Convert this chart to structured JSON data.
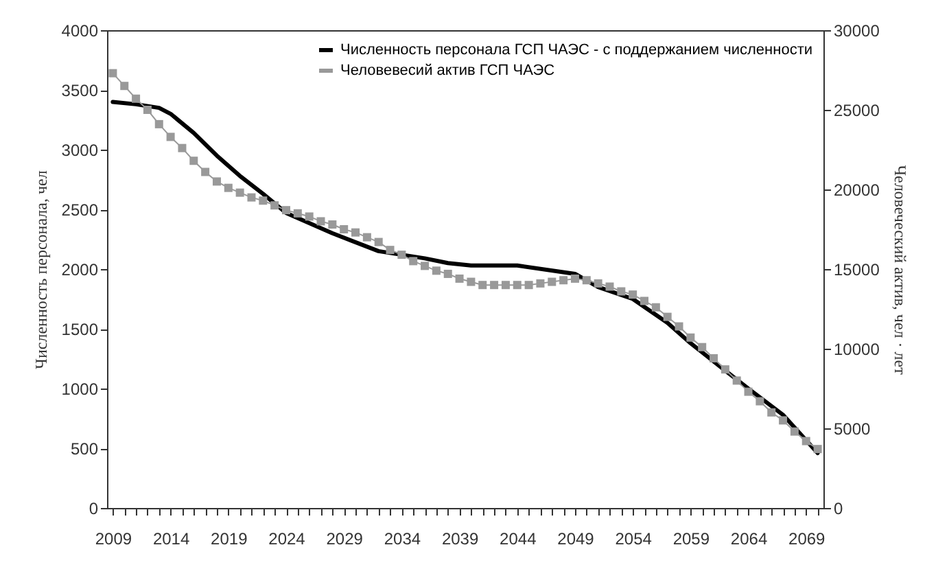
{
  "chart_data": {
    "type": "line",
    "ylabel": "Численность персонала, чел",
    "y2label": "Человеческий актив, чел · лет",
    "xlim": [
      2008.5,
      2070.5
    ],
    "xticks": [
      2009,
      {
        "value": 2010,
        "label": null
      },
      {
        "value": 2011,
        "label": null
      },
      {
        "value": 2012,
        "label": null
      },
      {
        "value": 2013,
        "label": null
      },
      2014,
      {
        "value": 2015,
        "label": null
      },
      {
        "value": 2016,
        "label": null
      },
      {
        "value": 2017,
        "label": null
      },
      {
        "value": 2018,
        "label": null
      },
      2019,
      {
        "value": 2020,
        "label": null
      },
      {
        "value": 2021,
        "label": null
      },
      {
        "value": 2022,
        "label": null
      },
      {
        "value": 2023,
        "label": null
      },
      2024,
      {
        "value": 2025,
        "label": null
      },
      {
        "value": 2026,
        "label": null
      },
      {
        "value": 2027,
        "label": null
      },
      {
        "value": 2028,
        "label": null
      },
      2029,
      {
        "value": 2030,
        "label": null
      },
      {
        "value": 2031,
        "label": null
      },
      {
        "value": 2032,
        "label": null
      },
      {
        "value": 2033,
        "label": null
      },
      2034,
      {
        "value": 2035,
        "label": null
      },
      {
        "value": 2036,
        "label": null
      },
      {
        "value": 2037,
        "label": null
      },
      {
        "value": 2038,
        "label": null
      },
      2039,
      {
        "value": 2040,
        "label": null
      },
      {
        "value": 2041,
        "label": null
      },
      {
        "value": 2042,
        "label": null
      },
      {
        "value": 2043,
        "label": null
      },
      2044,
      {
        "value": 2045,
        "label": null
      },
      {
        "value": 2046,
        "label": null
      },
      {
        "value": 2047,
        "label": null
      },
      {
        "value": 2048,
        "label": null
      },
      2049,
      {
        "value": 2050,
        "label": null
      },
      {
        "value": 2051,
        "label": null
      },
      {
        "value": 2052,
        "label": null
      },
      {
        "value": 2053,
        "label": null
      },
      2054,
      {
        "value": 2055,
        "label": null
      },
      {
        "value": 2056,
        "label": null
      },
      {
        "value": 2057,
        "label": null
      },
      {
        "value": 2058,
        "label": null
      },
      2059,
      {
        "value": 2060,
        "label": null
      },
      {
        "value": 2061,
        "label": null
      },
      {
        "value": 2062,
        "label": null
      },
      {
        "value": 2063,
        "label": null
      },
      2064,
      {
        "value": 2065,
        "label": null
      },
      {
        "value": 2066,
        "label": null
      },
      {
        "value": 2067,
        "label": null
      },
      {
        "value": 2068,
        "label": null
      },
      2069,
      {
        "value": 2070,
        "label": null
      }
    ],
    "ylim": [
      0,
      4000
    ],
    "yticks": [
      0,
      500,
      1000,
      1500,
      2000,
      2500,
      3000,
      3500,
      4000
    ],
    "y2lim": [
      0,
      30000
    ],
    "y2ticks": [
      0,
      5000,
      10000,
      15000,
      20000,
      25000,
      30000
    ],
    "grid": false,
    "legend": "top right",
    "series": [
      {
        "name": "Численность персонала ГСП ЧАЭС - с поддержанием численности",
        "color": "#000000",
        "marker": "none",
        "line_style": "solid",
        "x": [
          2009,
          2011,
          2013,
          2014,
          2016,
          2018,
          2020,
          2022,
          2024,
          2028,
          2032,
          2036,
          2038,
          2040,
          2044,
          2049,
          2051,
          2054,
          2057,
          2059,
          2062,
          2064,
          2067,
          2070
        ],
        "values": [
          3400,
          3380,
          3350,
          3300,
          3140,
          2950,
          2780,
          2630,
          2470,
          2300,
          2150,
          2090,
          2050,
          2030,
          2030,
          1960,
          1850,
          1750,
          1550,
          1380,
          1150,
          1000,
          780,
          460
        ]
      },
      {
        "name": "Человевесий актив ГСП ЧАЭС",
        "color": "#999999",
        "marker": "square",
        "line_style": "solid",
        "axis": "y2",
        "x": [
          2009,
          2010,
          2011,
          2012,
          2013,
          2014,
          2015,
          2016,
          2017,
          2018,
          2019,
          2020,
          2021,
          2022,
          2023,
          2024,
          2025,
          2026,
          2027,
          2028,
          2029,
          2030,
          2031,
          2032,
          2033,
          2034,
          2035,
          2036,
          2037,
          2038,
          2039,
          2040,
          2041,
          2042,
          2043,
          2044,
          2045,
          2046,
          2047,
          2048,
          2049,
          2050,
          2051,
          2052,
          2053,
          2054,
          2055,
          2056,
          2057,
          2058,
          2059,
          2060,
          2061,
          2062,
          2063,
          2064,
          2065,
          2066,
          2067,
          2068,
          2069,
          2070
        ],
        "values": [
          27300,
          26500,
          25700,
          25000,
          24100,
          23300,
          22600,
          21800,
          21100,
          20500,
          20100,
          19800,
          19500,
          19300,
          19000,
          18700,
          18500,
          18300,
          18000,
          17800,
          17500,
          17300,
          17000,
          16700,
          16200,
          15900,
          15500,
          15200,
          14900,
          14700,
          14400,
          14200,
          14000,
          14000,
          14000,
          14000,
          14000,
          14100,
          14200,
          14300,
          14400,
          14300,
          14100,
          13900,
          13600,
          13400,
          13000,
          12600,
          12000,
          11400,
          10700,
          10100,
          9400,
          8700,
          8000,
          7300,
          6700,
          6000,
          5500,
          4800,
          4200,
          3700
        ]
      }
    ]
  }
}
